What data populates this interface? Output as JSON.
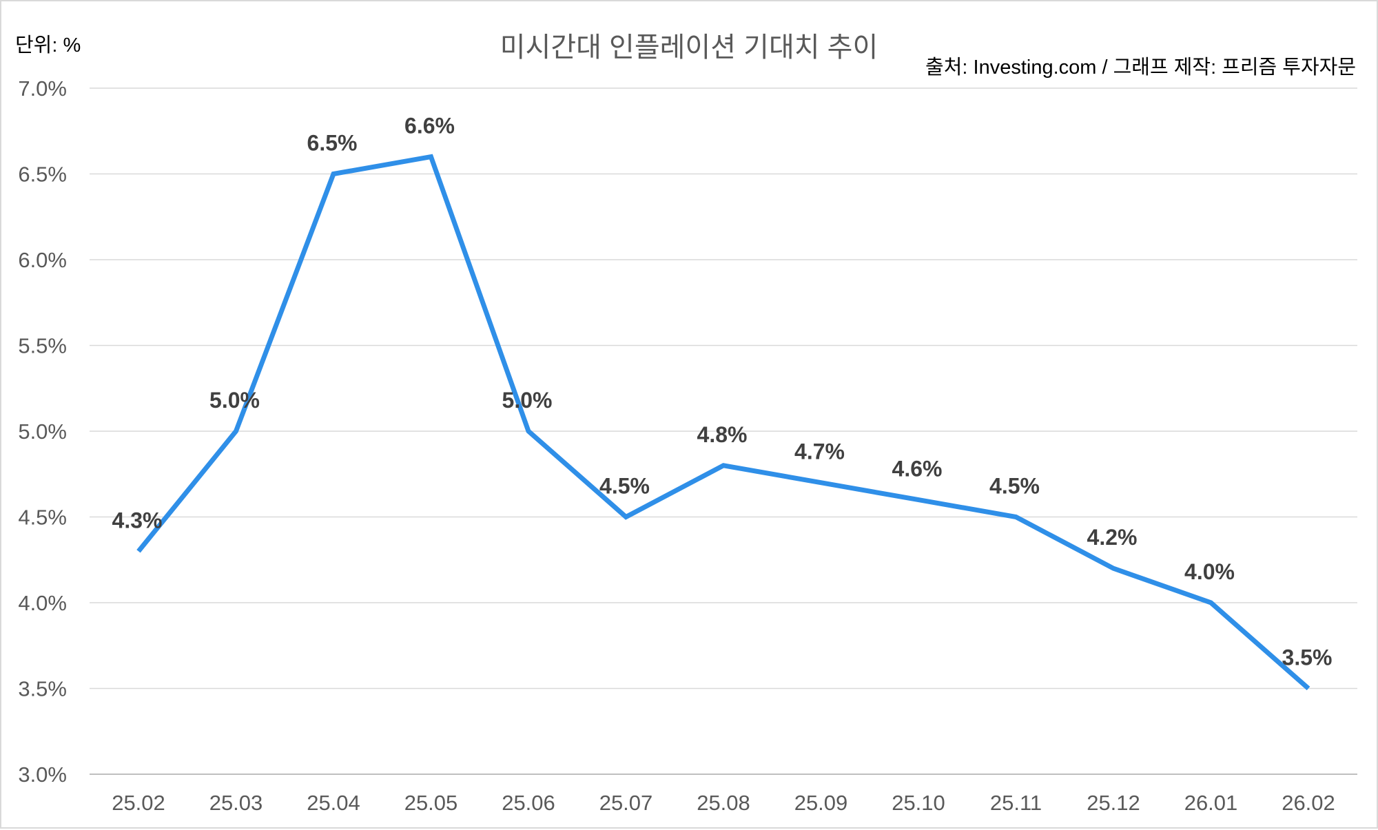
{
  "chart_data": {
    "type": "line",
    "title": "미시간대 인플레이션 기대치 추이",
    "unit_label": "단위: %",
    "source_label": "출처: Investing.com / 그래프 제작: 프리즘 투자자문",
    "categories": [
      "25.02",
      "25.03",
      "25.04",
      "25.05",
      "25.06",
      "25.07",
      "25.08",
      "25.09",
      "25.10",
      "25.11",
      "25.12",
      "26.01",
      "26.02"
    ],
    "series": [
      {
        "values": [
          4.3,
          5.0,
          6.5,
          6.6,
          5.0,
          4.5,
          4.8,
          4.7,
          4.6,
          4.5,
          4.2,
          4.0,
          3.5
        ],
        "data_labels": [
          "4.3%",
          "5.0%",
          "6.5%",
          "6.6%",
          "5.0%",
          "4.5%",
          "4.8%",
          "4.7%",
          "4.6%",
          "4.5%",
          "4.2%",
          "4.0%",
          "3.5%"
        ],
        "color": "#2f8fe8"
      }
    ],
    "ylim": [
      3.0,
      7.0
    ],
    "yticks": [
      3.0,
      3.5,
      4.0,
      4.5,
      5.0,
      5.5,
      6.0,
      6.5,
      7.0
    ],
    "ytick_labels": [
      "3.0%",
      "3.5%",
      "4.0%",
      "4.5%",
      "5.0%",
      "5.5%",
      "6.0%",
      "6.5%",
      "7.0%"
    ],
    "grid": true,
    "legend": "none"
  }
}
